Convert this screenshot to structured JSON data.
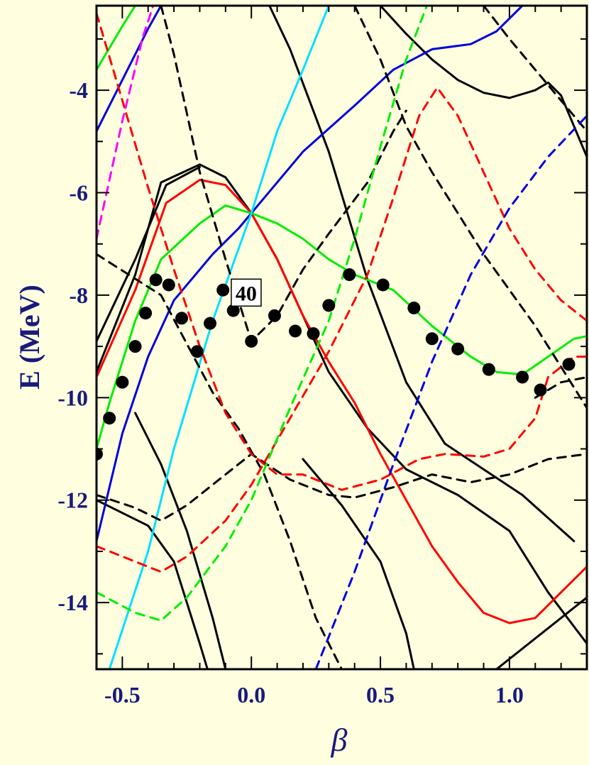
{
  "chart_data": {
    "type": "line",
    "xlabel": "β",
    "ylabel": "E (MeV)",
    "xlim": [
      -0.6,
      1.3
    ],
    "ylim": [
      -15.3,
      -2.35
    ],
    "x_ticks": [
      "-0.5",
      "0.0",
      "0.5",
      "1.0"
    ],
    "x_tick_values": [
      -0.5,
      0.0,
      0.5,
      1.0
    ],
    "y_ticks": [
      "-4",
      "-6",
      "-8",
      "-10",
      "-12",
      "-14"
    ],
    "y_tick_values": [
      -4,
      -6,
      -8,
      -10,
      -12,
      -14
    ],
    "annotation": "40",
    "annotation_at": {
      "x": -0.02,
      "y": -7.95
    },
    "grid": false,
    "colors": {
      "background": "#ffffe0",
      "axis_text": "#1a1a7a",
      "black": "#000000",
      "red": "#ff0000",
      "green": "#00ee00",
      "blue": "#0000dd",
      "cyan": "#00e0ff",
      "magenta": "#ff00ff"
    },
    "series": [
      {
        "color": "black",
        "dash": false,
        "points": [
          [
            -0.6,
            -9.5
          ],
          [
            -0.45,
            -7.6
          ],
          [
            -0.35,
            -5.8
          ],
          [
            -0.2,
            -5.45
          ],
          [
            -0.1,
            -5.7
          ],
          [
            0,
            -6.4
          ],
          [
            0.1,
            -7.3
          ],
          [
            0.3,
            -9.5
          ],
          [
            0.45,
            -10.6
          ],
          [
            0.6,
            -11.4
          ],
          [
            0.8,
            -11.9
          ],
          [
            1.0,
            -12.6
          ],
          [
            1.15,
            -13.8
          ],
          [
            1.3,
            -14.8
          ]
        ]
      },
      {
        "color": "black",
        "dash": false,
        "points": [
          [
            -0.6,
            -8.9
          ],
          [
            -0.45,
            -7.3
          ],
          [
            -0.33,
            -5.85
          ],
          [
            -0.2,
            -5.5
          ]
        ]
      },
      {
        "color": "black",
        "dash": false,
        "points": [
          [
            0.07,
            -2.35
          ],
          [
            0.15,
            -3.2
          ],
          [
            0.3,
            -5.2
          ],
          [
            0.45,
            -7.7
          ],
          [
            0.6,
            -9.7
          ],
          [
            0.75,
            -10.9
          ],
          [
            0.9,
            -11.4
          ],
          [
            1.05,
            -11.9
          ],
          [
            1.25,
            -12.8
          ]
        ]
      },
      {
        "color": "black",
        "dash": false,
        "points": [
          [
            -0.45,
            -10.3
          ],
          [
            -0.35,
            -11.3
          ],
          [
            -0.25,
            -12.6
          ],
          [
            -0.15,
            -14.3
          ],
          [
            -0.1,
            -15.3
          ]
        ]
      },
      {
        "color": "black",
        "dash": false,
        "points": [
          [
            -0.6,
            -12.0
          ],
          [
            -0.4,
            -12.5
          ],
          [
            -0.3,
            -13.2
          ],
          [
            -0.2,
            -14.8
          ],
          [
            -0.17,
            -15.3
          ]
        ]
      },
      {
        "color": "black",
        "dash": false,
        "points": [
          [
            0.2,
            -11.2
          ],
          [
            0.35,
            -12.1
          ],
          [
            0.5,
            -13.2
          ],
          [
            0.6,
            -14.6
          ],
          [
            0.63,
            -15.3
          ]
        ]
      },
      {
        "color": "black",
        "dash": false,
        "points": [
          [
            0.95,
            -15.3
          ],
          [
            1.05,
            -14.9
          ],
          [
            1.2,
            -14.3
          ],
          [
            1.3,
            -13.9
          ]
        ]
      },
      {
        "color": "black",
        "dash": false,
        "points": [
          [
            0.5,
            -2.35
          ],
          [
            0.6,
            -2.9
          ],
          [
            0.7,
            -3.4
          ],
          [
            0.8,
            -3.8
          ],
          [
            0.9,
            -4.05
          ],
          [
            1.0,
            -4.15
          ],
          [
            1.1,
            -4.0
          ],
          [
            1.15,
            -3.85
          ],
          [
            1.2,
            -4.1
          ],
          [
            1.3,
            -5.3
          ]
        ]
      },
      {
        "color": "red",
        "dash": false,
        "points": [
          [
            -0.6,
            -9.6
          ],
          [
            -0.45,
            -7.9
          ],
          [
            -0.33,
            -6.2
          ],
          [
            -0.2,
            -5.75
          ],
          [
            -0.1,
            -5.85
          ],
          [
            0,
            -6.4
          ],
          [
            0.1,
            -7.3
          ],
          [
            0.2,
            -8.4
          ],
          [
            0.3,
            -9.3
          ],
          [
            0.4,
            -10.1
          ],
          [
            0.5,
            -11.1
          ],
          [
            0.6,
            -12.0
          ],
          [
            0.7,
            -12.9
          ],
          [
            0.8,
            -13.6
          ],
          [
            0.9,
            -14.2
          ],
          [
            1.0,
            -14.4
          ],
          [
            1.1,
            -14.3
          ],
          [
            1.2,
            -13.8
          ],
          [
            1.3,
            -13.3
          ]
        ]
      },
      {
        "color": "green",
        "dash": false,
        "points": [
          [
            -0.6,
            -11.0
          ],
          [
            -0.55,
            -10.1
          ],
          [
            -0.45,
            -8.5
          ],
          [
            -0.35,
            -7.3
          ],
          [
            -0.2,
            -6.6
          ],
          [
            -0.1,
            -6.25
          ],
          [
            0,
            -6.4
          ],
          [
            0.1,
            -6.6
          ],
          [
            0.2,
            -6.9
          ],
          [
            0.3,
            -7.3
          ],
          [
            0.4,
            -7.6
          ],
          [
            0.55,
            -7.9
          ],
          [
            0.7,
            -8.6
          ],
          [
            0.85,
            -9.2
          ],
          [
            0.95,
            -9.5
          ],
          [
            1.05,
            -9.55
          ],
          [
            1.15,
            -9.2
          ],
          [
            1.25,
            -8.85
          ],
          [
            1.3,
            -8.8
          ]
        ]
      },
      {
        "color": "green",
        "dash": false,
        "points": [
          [
            -0.6,
            -3.6
          ],
          [
            -0.5,
            -2.75
          ],
          [
            -0.45,
            -2.35
          ]
        ]
      },
      {
        "color": "blue",
        "dash": false,
        "points": [
          [
            -0.6,
            -12.8
          ],
          [
            -0.5,
            -10.7
          ],
          [
            -0.4,
            -9.2
          ],
          [
            -0.3,
            -8.1
          ],
          [
            -0.15,
            -7.2
          ],
          [
            -0.05,
            -6.7
          ],
          [
            0,
            -6.4
          ],
          [
            0.2,
            -5.2
          ],
          [
            0.4,
            -4.3
          ],
          [
            0.55,
            -3.6
          ],
          [
            0.7,
            -3.2
          ],
          [
            0.85,
            -3.1
          ],
          [
            0.95,
            -2.85
          ],
          [
            1.05,
            -2.35
          ]
        ]
      },
      {
        "color": "blue",
        "dash": false,
        "points": [
          [
            -0.6,
            -4.8
          ],
          [
            -0.5,
            -3.8
          ],
          [
            -0.4,
            -2.8
          ],
          [
            -0.35,
            -2.35
          ]
        ]
      },
      {
        "color": "cyan",
        "dash": false,
        "points": [
          [
            -0.55,
            -15.3
          ],
          [
            -0.4,
            -13.0
          ],
          [
            -0.3,
            -11.0
          ],
          [
            -0.15,
            -8.5
          ],
          [
            -0.05,
            -7.1
          ],
          [
            0,
            -6.4
          ],
          [
            0.1,
            -4.8
          ],
          [
            0.2,
            -3.6
          ],
          [
            0.3,
            -2.35
          ]
        ]
      },
      {
        "color": "black",
        "dash": true,
        "points": [
          [
            -0.35,
            -2.35
          ],
          [
            -0.3,
            -3.3
          ],
          [
            -0.2,
            -5.6
          ],
          [
            -0.1,
            -7.3
          ],
          [
            0,
            -8.9
          ],
          [
            0.1,
            -8.4
          ],
          [
            0.2,
            -7.5
          ],
          [
            0.3,
            -6.8
          ],
          [
            0.45,
            -5.8
          ],
          [
            0.55,
            -4.8
          ],
          [
            0.6,
            -4.4
          ]
        ]
      },
      {
        "color": "black",
        "dash": true,
        "points": [
          [
            0.4,
            -2.35
          ],
          [
            0.5,
            -3.4
          ],
          [
            0.6,
            -4.7
          ],
          [
            0.7,
            -5.6
          ],
          [
            0.8,
            -6.4
          ],
          [
            0.9,
            -7.2
          ],
          [
            1.0,
            -7.9
          ],
          [
            1.1,
            -8.6
          ],
          [
            1.2,
            -9.4
          ],
          [
            1.3,
            -10.2
          ]
        ]
      },
      {
        "color": "black",
        "dash": true,
        "points": [
          [
            0.9,
            -2.35
          ],
          [
            1.0,
            -3.0
          ],
          [
            1.1,
            -3.6
          ],
          [
            1.2,
            -4.2
          ],
          [
            1.3,
            -4.8
          ]
        ]
      },
      {
        "color": "black",
        "dash": true,
        "points": [
          [
            -0.6,
            -11.9
          ],
          [
            -0.45,
            -12.15
          ],
          [
            -0.35,
            -12.4
          ],
          [
            -0.25,
            -12.1
          ],
          [
            -0.1,
            -11.5
          ],
          [
            0,
            -11.1
          ],
          [
            0.15,
            -11.6
          ],
          [
            0.3,
            -11.9
          ],
          [
            0.4,
            -11.95
          ],
          [
            0.55,
            -11.75
          ],
          [
            0.7,
            -11.5
          ],
          [
            0.85,
            -11.65
          ],
          [
            1.0,
            -11.5
          ],
          [
            1.15,
            -11.2
          ],
          [
            1.3,
            -11.1
          ]
        ]
      },
      {
        "color": "black",
        "dash": true,
        "points": [
          [
            -0.6,
            -7.2
          ],
          [
            -0.35,
            -8.0
          ],
          [
            -0.15,
            -9.9
          ],
          [
            -0.05,
            -10.6
          ],
          [
            0.05,
            -11.5
          ],
          [
            0.15,
            -12.8
          ],
          [
            0.25,
            -14.3
          ],
          [
            0.35,
            -15.3
          ]
        ]
      },
      {
        "color": "black",
        "dash": true,
        "points": [
          [
            1.1,
            -10.0
          ],
          [
            1.2,
            -9.7
          ],
          [
            1.3,
            -9.6
          ]
        ]
      },
      {
        "color": "red",
        "dash": true,
        "points": [
          [
            -0.6,
            -2.5
          ],
          [
            -0.5,
            -4.2
          ],
          [
            -0.4,
            -5.9
          ],
          [
            -0.3,
            -7.5
          ],
          [
            -0.2,
            -9.0
          ],
          [
            -0.1,
            -10.3
          ],
          [
            0,
            -11.1
          ],
          [
            0.1,
            -11.5
          ],
          [
            0.2,
            -11.5
          ],
          [
            0.35,
            -11.8
          ],
          [
            0.5,
            -11.6
          ],
          [
            0.65,
            -11.2
          ],
          [
            0.75,
            -11.1
          ],
          [
            0.9,
            -11.15
          ],
          [
            1.0,
            -11.0
          ],
          [
            1.1,
            -10.4
          ],
          [
            1.15,
            -9.6
          ],
          [
            1.25,
            -9.2
          ],
          [
            1.3,
            -9.2
          ]
        ]
      },
      {
        "color": "red",
        "dash": true,
        "points": [
          [
            -0.6,
            -12.9
          ],
          [
            -0.45,
            -13.2
          ],
          [
            -0.35,
            -13.4
          ],
          [
            -0.25,
            -13.1
          ],
          [
            -0.1,
            -12.4
          ],
          [
            0,
            -11.7
          ],
          [
            0.15,
            -10.4
          ],
          [
            0.3,
            -9.1
          ],
          [
            0.45,
            -7.6
          ],
          [
            0.55,
            -6.1
          ],
          [
            0.65,
            -4.5
          ],
          [
            0.72,
            -3.95
          ],
          [
            0.8,
            -4.5
          ],
          [
            0.9,
            -5.6
          ],
          [
            1.0,
            -6.7
          ],
          [
            1.1,
            -7.5
          ],
          [
            1.2,
            -8.1
          ],
          [
            1.3,
            -8.5
          ]
        ]
      },
      {
        "color": "green",
        "dash": true,
        "points": [
          [
            -0.6,
            -13.8
          ],
          [
            -0.45,
            -14.2
          ],
          [
            -0.35,
            -14.35
          ],
          [
            -0.25,
            -13.9
          ],
          [
            -0.1,
            -12.9
          ],
          [
            0,
            -12.0
          ],
          [
            0.15,
            -10.2
          ],
          [
            0.3,
            -8.5
          ],
          [
            0.4,
            -6.9
          ],
          [
            0.5,
            -5.1
          ],
          [
            0.6,
            -3.4
          ],
          [
            0.68,
            -2.35
          ]
        ]
      },
      {
        "color": "blue",
        "dash": true,
        "points": [
          [
            0.25,
            -15.3
          ],
          [
            0.4,
            -13.4
          ],
          [
            0.55,
            -11.3
          ],
          [
            0.7,
            -9.3
          ],
          [
            0.85,
            -7.6
          ],
          [
            1.0,
            -6.3
          ],
          [
            1.15,
            -5.3
          ],
          [
            1.3,
            -4.5
          ]
        ]
      },
      {
        "color": "magenta",
        "dash": true,
        "points": [
          [
            -0.6,
            -6.9
          ],
          [
            -0.5,
            -4.6
          ],
          [
            -0.42,
            -2.95
          ],
          [
            -0.38,
            -2.35
          ]
        ]
      }
    ],
    "markers": [
      [
        -0.6,
        -11.1
      ],
      [
        -0.55,
        -10.4
      ],
      [
        -0.5,
        -9.7
      ],
      [
        -0.45,
        -9.0
      ],
      [
        -0.41,
        -8.35
      ],
      [
        -0.37,
        -7.7
      ],
      [
        -0.32,
        -7.8
      ],
      [
        -0.27,
        -8.45
      ],
      [
        -0.21,
        -9.1
      ],
      [
        -0.16,
        -8.55
      ],
      [
        -0.11,
        -7.9
      ],
      [
        -0.07,
        -8.3
      ],
      [
        0.0,
        -8.9
      ],
      [
        0.09,
        -8.4
      ],
      [
        0.17,
        -8.7
      ],
      [
        0.24,
        -8.75
      ],
      [
        0.3,
        -8.2
      ],
      [
        0.38,
        -7.6
      ],
      [
        0.51,
        -7.8
      ],
      [
        0.63,
        -8.25
      ],
      [
        0.7,
        -8.85
      ],
      [
        0.8,
        -9.05
      ],
      [
        0.92,
        -9.45
      ],
      [
        1.05,
        -9.6
      ],
      [
        1.12,
        -9.85
      ],
      [
        1.23,
        -9.35
      ]
    ]
  }
}
